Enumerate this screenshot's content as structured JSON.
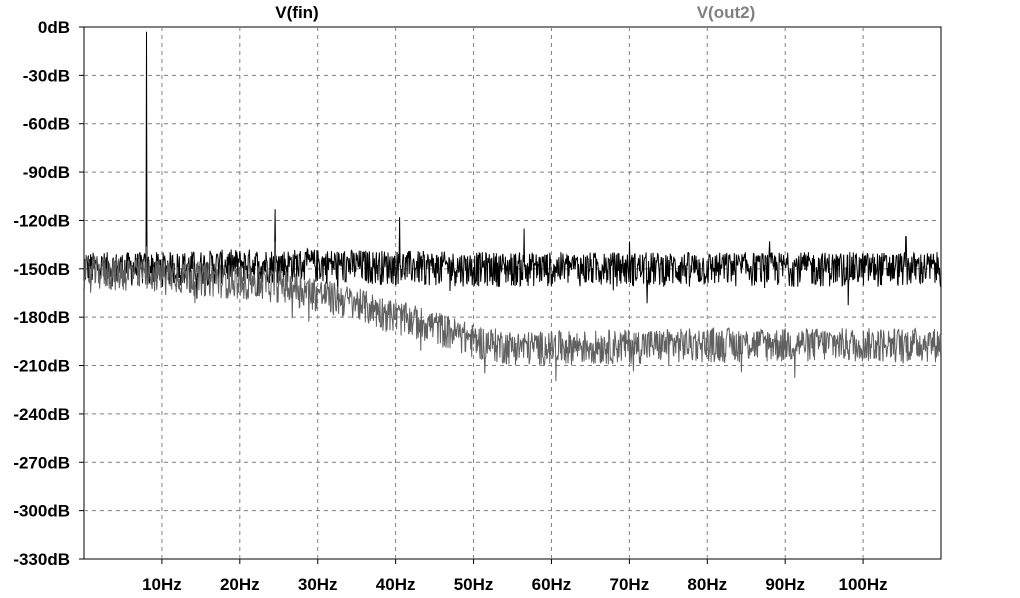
{
  "chart_data": {
    "type": "line",
    "xlim": [
      0,
      110
    ],
    "ylim": [
      -330,
      0
    ],
    "x_ticks": [
      10,
      20,
      30,
      40,
      50,
      60,
      70,
      80,
      90,
      100
    ],
    "x_tick_labels": [
      "10Hz",
      "20Hz",
      "30Hz",
      "40Hz",
      "50Hz",
      "60Hz",
      "70Hz",
      "80Hz",
      "90Hz",
      "100Hz"
    ],
    "y_ticks": [
      0,
      -30,
      -60,
      -90,
      -120,
      -150,
      -180,
      -210,
      -240,
      -270,
      -300,
      -330
    ],
    "y_tick_labels": [
      "0dB",
      "-30dB",
      "-60dB",
      "-90dB",
      "-120dB",
      "-150dB",
      "-180dB",
      "-210dB",
      "-240dB",
      "-270dB",
      "-300dB",
      "-330dB"
    ],
    "grid": true,
    "legend": "top",
    "series": [
      {
        "name": "V(fin)",
        "color": "#000000",
        "noise_spread_db": 12,
        "trend": [
          [
            0,
            -148
          ],
          [
            10,
            -148
          ],
          [
            20,
            -146
          ],
          [
            30,
            -146
          ],
          [
            40,
            -147
          ],
          [
            50,
            -148
          ],
          [
            60,
            -148
          ],
          [
            70,
            -148
          ],
          [
            80,
            -148
          ],
          [
            90,
            -148
          ],
          [
            100,
            -148
          ],
          [
            110,
            -148
          ]
        ],
        "peaks": [
          [
            8,
            -3
          ],
          [
            24.5,
            -113
          ],
          [
            40.5,
            -118
          ],
          [
            56.5,
            -125
          ],
          [
            70,
            -133
          ],
          [
            88,
            -133
          ],
          [
            105.5,
            -130
          ]
        ]
      },
      {
        "name": "V(out2)",
        "color": "#606060",
        "noise_spread_db": 12,
        "trend": [
          [
            0,
            -150
          ],
          [
            10,
            -152
          ],
          [
            20,
            -156
          ],
          [
            25,
            -158
          ],
          [
            30,
            -164
          ],
          [
            35,
            -170
          ],
          [
            40,
            -178
          ],
          [
            45,
            -184
          ],
          [
            50,
            -193
          ],
          [
            55,
            -197
          ],
          [
            60,
            -197
          ],
          [
            70,
            -196
          ],
          [
            80,
            -195
          ],
          [
            90,
            -195
          ],
          [
            100,
            -195
          ],
          [
            110,
            -195
          ]
        ],
        "peaks": [
          [
            8,
            -136
          ],
          [
            24.5,
            -133
          ]
        ]
      }
    ]
  }
}
